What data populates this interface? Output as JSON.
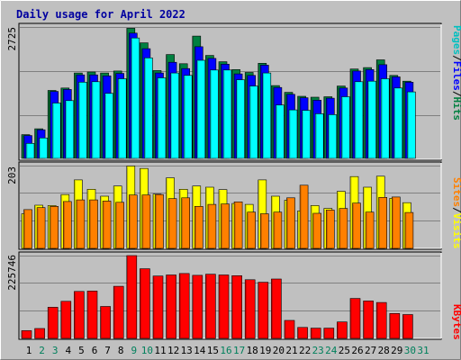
{
  "chart_data": [
    {
      "type": "bar",
      "title": "Daily usage for April 2022",
      "ymax_label": "2725",
      "ymax": 2725,
      "categories": [
        "1",
        "2",
        "3",
        "4",
        "5",
        "6",
        "7",
        "8",
        "9",
        "10",
        "11",
        "12",
        "13",
        "14",
        "15",
        "16",
        "17",
        "18",
        "19",
        "20",
        "21",
        "22",
        "23",
        "24",
        "25",
        "26",
        "27",
        "28",
        "29",
        "30",
        "31"
      ],
      "series": [
        {
          "name": "Hits",
          "color": "#008040",
          "values": [
            490,
            610,
            1400,
            1450,
            1760,
            1780,
            1760,
            1800,
            2680,
            2380,
            1810,
            2140,
            1950,
            2520,
            2120,
            1990,
            1830,
            1770,
            1960,
            1500,
            1360,
            1280,
            1260,
            1270,
            1490,
            1840,
            1870,
            2030,
            1710,
            1590,
            0
          ]
        },
        {
          "name": "Files",
          "color": "#0000ff",
          "values": [
            470,
            590,
            1380,
            1420,
            1720,
            1720,
            1700,
            1750,
            2580,
            2260,
            1760,
            1980,
            1850,
            2300,
            2060,
            1940,
            1740,
            1710,
            1920,
            1460,
            1320,
            1250,
            1200,
            1240,
            1450,
            1800,
            1830,
            1930,
            1680,
            1570,
            0
          ]
        },
        {
          "name": "Pages",
          "color": "#00ffff",
          "values": [
            310,
            420,
            1140,
            1190,
            1570,
            1580,
            1340,
            1640,
            2480,
            2070,
            1660,
            1760,
            1710,
            2020,
            1820,
            1820,
            1620,
            1490,
            1760,
            1100,
            1000,
            990,
            920,
            900,
            1270,
            1580,
            1590,
            1640,
            1450,
            1370,
            0
          ]
        }
      ]
    },
    {
      "type": "bar",
      "ymax_label": "203",
      "ymax": 203,
      "categories": [
        "1",
        "2",
        "3",
        "4",
        "5",
        "6",
        "7",
        "8",
        "9",
        "10",
        "11",
        "12",
        "13",
        "14",
        "15",
        "16",
        "17",
        "18",
        "19",
        "20",
        "21",
        "22",
        "23",
        "24",
        "25",
        "26",
        "27",
        "28",
        "29",
        "30",
        "31"
      ],
      "series": [
        {
          "name": "Visits",
          "color": "#ffff00",
          "values": [
            85,
            106,
            105,
            132,
            168,
            145,
            128,
            153,
            202,
            196,
            133,
            173,
            145,
            153,
            150,
            144,
            110,
            108,
            168,
            128,
            118,
            92,
            105,
            98,
            140,
            176,
            150,
            177,
            123,
            112,
            0
          ]
        },
        {
          "name": "Sites",
          "color": "#ff8000",
          "values": [
            95,
            100,
            103,
            115,
            119,
            119,
            116,
            113,
            131,
            131,
            132,
            122,
            124,
            103,
            108,
            109,
            114,
            89,
            85,
            89,
            124,
            155,
            86,
            94,
            98,
            111,
            89,
            125,
            126,
            88,
            0
          ]
        }
      ]
    },
    {
      "type": "bar",
      "ymax_label": "225746",
      "ymax": 225746,
      "categories": [
        "1",
        "2",
        "3",
        "4",
        "5",
        "6",
        "7",
        "8",
        "9",
        "10",
        "11",
        "12",
        "13",
        "14",
        "15",
        "16",
        "17",
        "18",
        "19",
        "20",
        "21",
        "22",
        "23",
        "24",
        "25",
        "26",
        "27",
        "28",
        "29",
        "30",
        "31"
      ],
      "series": [
        {
          "name": "KBytes",
          "color": "#ff0000",
          "values": [
            21000,
            27000,
            85000,
            101000,
            128000,
            129000,
            87000,
            142000,
            225746,
            190000,
            170000,
            173000,
            177000,
            172000,
            175000,
            173000,
            171000,
            160000,
            153000,
            162000,
            49000,
            30000,
            28000,
            28000,
            45000,
            109000,
            102000,
            98000,
            68000,
            65000,
            0
          ]
        }
      ]
    }
  ],
  "x_labels": {
    "days": [
      "1",
      "2",
      "3",
      "4",
      "5",
      "6",
      "7",
      "8",
      "9",
      "10",
      "11",
      "12",
      "13",
      "14",
      "15",
      "16",
      "17",
      "18",
      "19",
      "20",
      "21",
      "22",
      "23",
      "24",
      "25",
      "26",
      "27",
      "28",
      "29",
      "30",
      "31"
    ],
    "weekday_color": "#000000",
    "weekend_color": "#00805c",
    "weekend_days": [
      "2",
      "3",
      "9",
      "10",
      "16",
      "17",
      "23",
      "24",
      "30",
      "31"
    ]
  },
  "legend_top": [
    {
      "text": "Pages",
      "color": "#00c0c0"
    },
    {
      "text": "/",
      "color": "#000000"
    },
    {
      "text": "Files",
      "color": "#0000ff"
    },
    {
      "text": "/",
      "color": "#000000"
    },
    {
      "text": "Hits",
      "color": "#008040"
    }
  ],
  "legend_mid": [
    {
      "text": "Sites",
      "color": "#ff8000"
    },
    {
      "text": "/",
      "color": "#000000"
    },
    {
      "text": "Visits",
      "color": "#ffff00"
    }
  ],
  "legend_bot": [
    {
      "text": "KBytes",
      "color": "#ff0000"
    }
  ]
}
